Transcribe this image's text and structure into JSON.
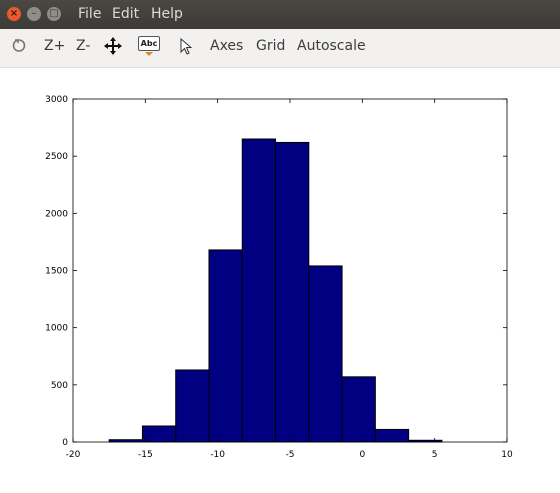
{
  "window": {
    "menus": [
      "File",
      "Edit",
      "Help"
    ]
  },
  "toolbar": {
    "zoom_in_label": "Z+",
    "zoom_out_label": "Z-",
    "text_icon_label": "Abc",
    "axes_label": "Axes",
    "grid_label": "Grid",
    "autoscale_label": "Autoscale"
  },
  "chart_data": {
    "type": "bar",
    "title": "",
    "xlabel": "",
    "ylabel": "",
    "xlim": [
      -20,
      10
    ],
    "ylim": [
      0,
      3000
    ],
    "x_ticks": [
      -20,
      -15,
      -10,
      -5,
      0,
      5,
      10
    ],
    "y_ticks": [
      0,
      500,
      1000,
      1500,
      2000,
      2500,
      3000
    ],
    "grid": false,
    "bar_color": "#000080",
    "bin_edges": [
      -17.5,
      -15.2,
      -12.9,
      -10.6,
      -8.3,
      -6.0,
      -3.7,
      -1.4,
      0.9,
      3.2,
      5.5
    ],
    "values": [
      20,
      140,
      630,
      1680,
      2650,
      2620,
      1540,
      570,
      110,
      15
    ]
  }
}
